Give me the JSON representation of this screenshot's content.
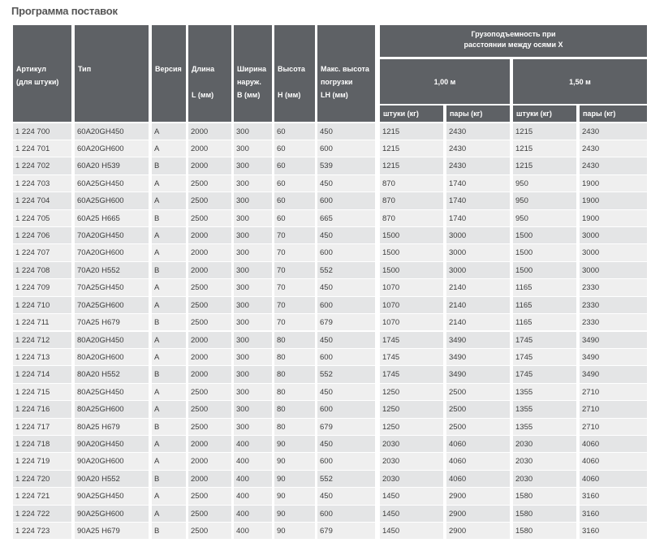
{
  "title": "Программа поставок",
  "table": {
    "header": {
      "columns": [
        [
          "Артикул",
          "(для штуки)"
        ],
        [
          "Тип"
        ],
        [
          "Версия"
        ],
        [
          "Длина",
          "L (мм)"
        ],
        [
          "Ширина",
          "наруж.",
          "B (мм)"
        ],
        [
          "Высота",
          "H (мм)"
        ],
        [
          "Макс. высота",
          "погрузки",
          "LH (мм)"
        ]
      ],
      "group": [
        "Грузоподъемность при",
        "расстоянии между осями X"
      ],
      "sub_groups": [
        "1,00 м",
        "1,50 м"
      ],
      "sub_columns": [
        "штуки (кг)",
        "пары (кг)",
        "штуки (кг)",
        "пары (кг)"
      ]
    },
    "rows": [
      [
        "1 224 700",
        "60A20GH450",
        "A",
        "2000",
        "300",
        "60",
        "450",
        "1215",
        "2430",
        "1215",
        "2430"
      ],
      [
        "1 224 701",
        "60A20GH600",
        "A",
        "2000",
        "300",
        "60",
        "600",
        "1215",
        "2430",
        "1215",
        "2430"
      ],
      [
        "1 224 702",
        "60A20 H539",
        "B",
        "2000",
        "300",
        "60",
        "539",
        "1215",
        "2430",
        "1215",
        "2430"
      ],
      [
        "1 224 703",
        "60A25GH450",
        "A",
        "2500",
        "300",
        "60",
        "450",
        "870",
        "1740",
        "950",
        "1900"
      ],
      [
        "1 224 704",
        "60A25GH600",
        "A",
        "2500",
        "300",
        "60",
        "600",
        "870",
        "1740",
        "950",
        "1900"
      ],
      [
        "1 224 705",
        "60A25 H665",
        "B",
        "2500",
        "300",
        "60",
        "665",
        "870",
        "1740",
        "950",
        "1900"
      ],
      [
        "1 224 706",
        "70A20GH450",
        "A",
        "2000",
        "300",
        "70",
        "450",
        "1500",
        "3000",
        "1500",
        "3000"
      ],
      [
        "1 224 707",
        "70A20GH600",
        "A",
        "2000",
        "300",
        "70",
        "600",
        "1500",
        "3000",
        "1500",
        "3000"
      ],
      [
        "1 224 708",
        "70A20 H552",
        "B",
        "2000",
        "300",
        "70",
        "552",
        "1500",
        "3000",
        "1500",
        "3000"
      ],
      [
        "1 224 709",
        "70A25GH450",
        "A",
        "2500",
        "300",
        "70",
        "450",
        "1070",
        "2140",
        "1165",
        "2330"
      ],
      [
        "1 224 710",
        "70A25GH600",
        "A",
        "2500",
        "300",
        "70",
        "600",
        "1070",
        "2140",
        "1165",
        "2330"
      ],
      [
        "1 224 711",
        "70A25 H679",
        "B",
        "2500",
        "300",
        "70",
        "679",
        "1070",
        "2140",
        "1165",
        "2330"
      ],
      [
        "1 224 712",
        "80A20GH450",
        "A",
        "2000",
        "300",
        "80",
        "450",
        "1745",
        "3490",
        "1745",
        "3490"
      ],
      [
        "1 224 713",
        "80A20GH600",
        "A",
        "2000",
        "300",
        "80",
        "600",
        "1745",
        "3490",
        "1745",
        "3490"
      ],
      [
        "1 224 714",
        "80A20 H552",
        "B",
        "2000",
        "300",
        "80",
        "552",
        "1745",
        "3490",
        "1745",
        "3490"
      ],
      [
        "1 224 715",
        "80A25GH450",
        "A",
        "2500",
        "300",
        "80",
        "450",
        "1250",
        "2500",
        "1355",
        "2710"
      ],
      [
        "1 224 716",
        "80A25GH600",
        "A",
        "2500",
        "300",
        "80",
        "600",
        "1250",
        "2500",
        "1355",
        "2710"
      ],
      [
        "1 224 717",
        "80A25 H679",
        "B",
        "2500",
        "300",
        "80",
        "679",
        "1250",
        "2500",
        "1355",
        "2710"
      ],
      [
        "1 224 718",
        "90A20GH450",
        "A",
        "2000",
        "400",
        "90",
        "450",
        "2030",
        "4060",
        "2030",
        "4060"
      ],
      [
        "1 224 719",
        "90A20GH600",
        "A",
        "2000",
        "400",
        "90",
        "600",
        "2030",
        "4060",
        "2030",
        "4060"
      ],
      [
        "1 224 720",
        "90A20 H552",
        "B",
        "2000",
        "400",
        "90",
        "552",
        "2030",
        "4060",
        "2030",
        "4060"
      ],
      [
        "1 224 721",
        "90A25GH450",
        "A",
        "2500",
        "400",
        "90",
        "450",
        "1450",
        "2900",
        "1580",
        "3160"
      ],
      [
        "1 224 722",
        "90A25GH600",
        "A",
        "2500",
        "400",
        "90",
        "600",
        "1450",
        "2900",
        "1580",
        "3160"
      ],
      [
        "1 224 723",
        "90A25 H679",
        "B",
        "2500",
        "400",
        "90",
        "679",
        "1450",
        "2900",
        "1580",
        "3160"
      ]
    ]
  }
}
